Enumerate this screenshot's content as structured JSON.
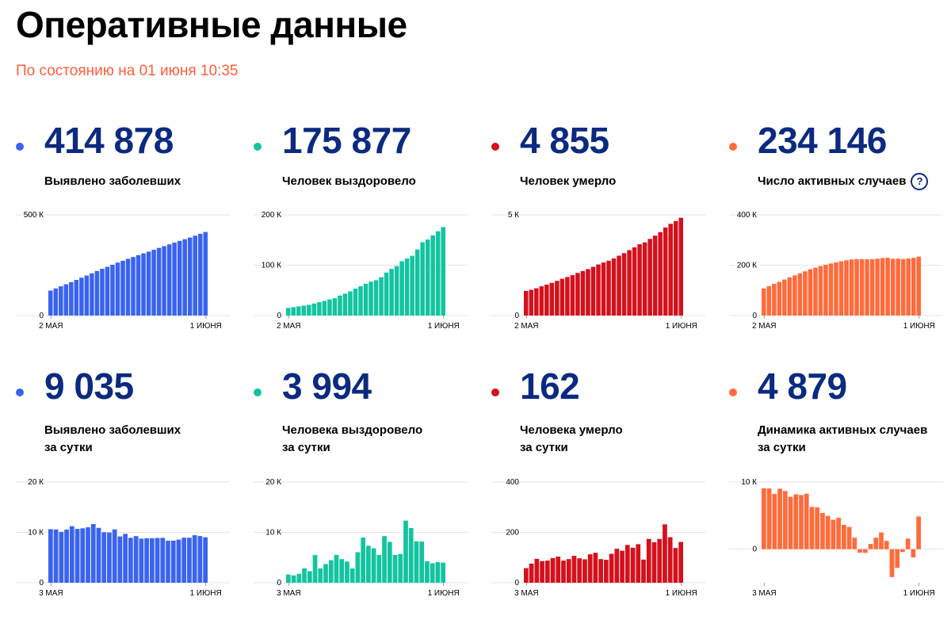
{
  "header": {
    "title": "Оперативные данные",
    "subtitle": "По состоянию на 01 июня 10:35"
  },
  "cards": [
    {
      "value": "414 878",
      "label_1": "Выявлено заболевших",
      "label_2": "",
      "color": "#3a63f0"
    },
    {
      "value": "175 877",
      "label_1": "Человек выздоровело",
      "label_2": "",
      "color": "#12c4a0"
    },
    {
      "value": "4 855",
      "label_1": "Человек умерло",
      "label_2": "",
      "color": "#d4111c"
    },
    {
      "value": "234 146",
      "label_1": "Число активных случаев",
      "label_2": "",
      "color": "#ff6b3d",
      "help_icon": "?"
    },
    {
      "value": "9 035",
      "label_1": "Выявлено заболевших",
      "label_2": "за сутки",
      "color": "#3a63f0"
    },
    {
      "value": "3 994",
      "label_1": "Человека выздоровело",
      "label_2": "за сутки",
      "color": "#12c4a0"
    },
    {
      "value": "162",
      "label_1": "Человека умерло",
      "label_2": "за сутки",
      "color": "#d4111c"
    },
    {
      "value": "4 879",
      "label_1": "Динамика активных случаев",
      "label_2": "за сутки",
      "color": "#ff6b3d"
    }
  ],
  "chart_data": [
    {
      "type": "bar",
      "series_color": "#3a63f0",
      "ylim": [
        0,
        500000
      ],
      "y_ticks": [
        {
          "value": 0,
          "label": "0"
        },
        {
          "value": 500000,
          "label": "500 К"
        }
      ],
      "x_tick_labels": [
        "2 МАЯ",
        "1 ИЮНЯ"
      ],
      "values": [
        124054,
        134687,
        145268,
        155370,
        165929,
        177160,
        187859,
        198676,
        209688,
        221344,
        232243,
        242271,
        252245,
        262843,
        272043,
        281752,
        290678,
        299941,
        308705,
        317554,
        326448,
        335882,
        344481,
        353427,
        362342,
        370680,
        379051,
        387623,
        396575,
        405843,
        414878
      ]
    },
    {
      "type": "bar",
      "series_color": "#12c4a0",
      "ylim": [
        0,
        200000
      ],
      "y_ticks": [
        {
          "value": 0,
          "label": "0"
        },
        {
          "value": 100000,
          "label": "100 К"
        },
        {
          "value": 200000,
          "label": "200 К"
        }
      ],
      "x_tick_labels": [
        "2 МАЯ",
        "1 ИЮНЯ"
      ],
      "values": [
        15131,
        16639,
        18095,
        19865,
        21327,
        23803,
        26608,
        29145,
        32007,
        34306,
        39801,
        43512,
        48003,
        53530,
        58226,
        63166,
        67373,
        70209,
        76130,
        85392,
        92681,
        98200,
        107936,
        113299,
        118798,
        131129,
        145745,
        150993,
        159257,
        167469,
        175877
      ]
    },
    {
      "type": "bar",
      "series_color": "#d4111c",
      "ylim": [
        0,
        5000
      ],
      "y_ticks": [
        {
          "value": 0,
          "label": "0"
        },
        {
          "value": 5000,
          "label": "5 К"
        }
      ],
      "x_tick_labels": [
        "2 МАЯ",
        "1 ИЮНЯ"
      ],
      "values": [
        1222,
        1280,
        1356,
        1451,
        1537,
        1625,
        1723,
        1827,
        1915,
        2009,
        2116,
        2212,
        2305,
        2418,
        2537,
        2631,
        2722,
        2837,
        2972,
        3099,
        3249,
        3388,
        3541,
        3633,
        3807,
        3968,
        4142,
        4374,
        4555,
        4693,
        4855
      ]
    },
    {
      "type": "bar",
      "series_color": "#ff6b3d",
      "ylim": [
        0,
        400000
      ],
      "y_ticks": [
        {
          "value": 0,
          "label": "0"
        },
        {
          "value": 200000,
          "label": "200 К"
        },
        {
          "value": 400000,
          "label": "400 К"
        }
      ],
      "x_tick_labels": [
        "2 МАЯ",
        "1 ИЮНЯ"
      ],
      "values": [
        107701,
        116768,
        125817,
        134054,
        143065,
        151732,
        159528,
        167704,
        175766,
        184029,
        190326,
        196547,
        201937,
        206895,
        211280,
        215955,
        219583,
        222893,
        224603,
        224073,
        223518,
        224294,
        226004,
        228495,
        229737,
        225583,
        226164,
        224540,
        226765,
        229267,
        234146
      ]
    },
    {
      "type": "bar",
      "series_color": "#3a63f0",
      "ylim": [
        0,
        20000
      ],
      "y_ticks": [
        {
          "value": 0,
          "label": "0"
        },
        {
          "value": 10000,
          "label": "10 К"
        },
        {
          "value": 20000,
          "label": "20 К"
        }
      ],
      "x_tick_labels": [
        "3 МАЯ",
        "1 ИЮНЯ"
      ],
      "values": [
        10633,
        10581,
        10102,
        10559,
        11231,
        10699,
        10817,
        11012,
        11656,
        10899,
        10028,
        9974,
        10598,
        9200,
        9709,
        8926,
        9263,
        8764,
        8849,
        8849,
        8894,
        8915,
        8338,
        8371,
        8572,
        8952,
        8946,
        9434,
        9268,
        9035
      ]
    },
    {
      "type": "bar",
      "series_color": "#12c4a0",
      "ylim": [
        0,
        20000
      ],
      "y_ticks": [
        {
          "value": 0,
          "label": "0"
        },
        {
          "value": 10000,
          "label": "10 К"
        },
        {
          "value": 20000,
          "label": "20 К"
        }
      ],
      "x_tick_labels": [
        "3 МАЯ",
        "1 ИЮНЯ"
      ],
      "values": [
        1626,
        1456,
        1770,
        2862,
        2299,
        5495,
        2862,
        3711,
        4472,
        5527,
        4696,
        4207,
        2836,
        6057,
        8962,
        7338,
        6848,
        5520,
        9262,
        8126,
        5519,
        5725,
        12331,
        10864,
        8222,
        8183,
        4279,
        3877,
        4091,
        3994
      ]
    },
    {
      "type": "bar",
      "series_color": "#d4111c",
      "ylim": [
        0,
        400
      ],
      "y_ticks": [
        {
          "value": 0,
          "label": "0"
        },
        {
          "value": 200,
          "label": "200"
        },
        {
          "value": 400,
          "label": "400"
        }
      ],
      "x_tick_labels": [
        "3 МАЯ",
        "1 ИЮНЯ"
      ],
      "values": [
        58,
        76,
        95,
        86,
        88,
        98,
        104,
        88,
        94,
        107,
        97,
        93,
        113,
        119,
        94,
        91,
        115,
        135,
        127,
        150,
        139,
        153,
        92,
        174,
        161,
        174,
        232,
        181,
        138,
        162
      ]
    },
    {
      "type": "bar",
      "series_color": "#ff6b3d",
      "ylim": [
        -5000,
        10000
      ],
      "y_ticks": [
        {
          "value": 0,
          "label": "0"
        },
        {
          "value": 10000,
          "label": "10 К"
        }
      ],
      "x_tick_labels": [
        "3 МАЯ",
        "1 ИЮНЯ"
      ],
      "values": [
        9067,
        9049,
        8237,
        9011,
        8667,
        7796,
        8176,
        8062,
        8263,
        6297,
        6221,
        5390,
        4958,
        4385,
        4675,
        3628,
        3310,
        1710,
        -530,
        -555,
        776,
        1710,
        2491,
        1242,
        -4154,
        -2784,
        -417,
        1576,
        -1224,
        4879
      ]
    }
  ]
}
